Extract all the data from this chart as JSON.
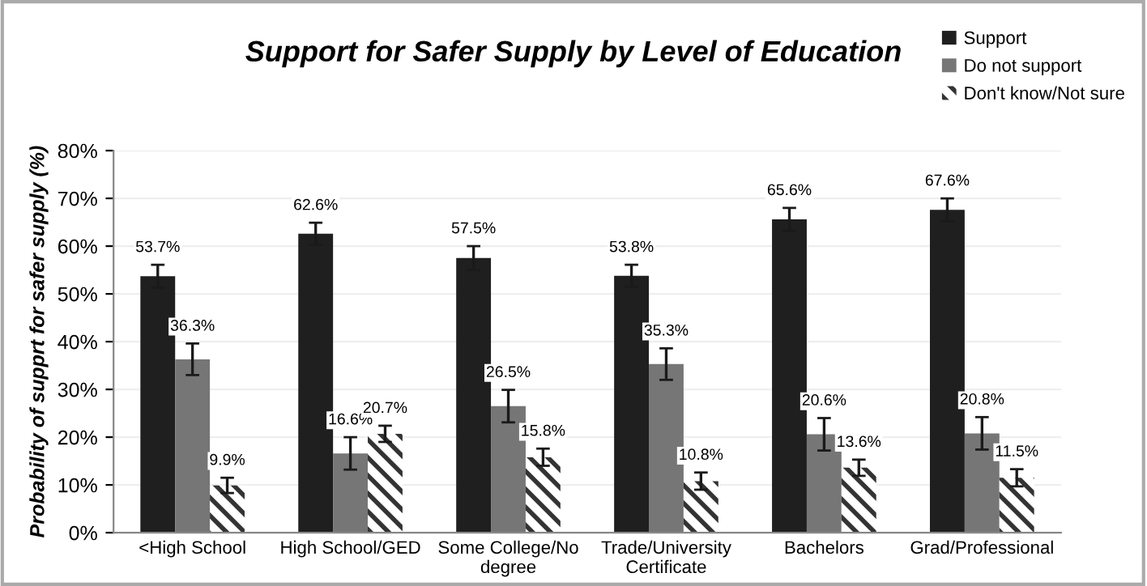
{
  "chart_data": {
    "type": "bar",
    "title": "Support for Safer Supply by Level of Education",
    "ylabel": "Probability of supprt for safer supply (%)",
    "categories": [
      "<High School",
      "High School/GED",
      "Some College/No\ndegree",
      "Trade/University\nCertificate",
      "Bachelors",
      "Grad/Professional"
    ],
    "series": [
      {
        "name": "Support",
        "color": "#1f1f1f",
        "values": [
          53.7,
          62.6,
          57.5,
          53.8,
          65.6,
          67.6
        ],
        "errors": [
          2.4,
          2.3,
          2.5,
          2.3,
          2.4,
          2.4
        ],
        "value_labels": [
          "53.7%",
          "62.6%",
          "57.5%",
          "53.8%",
          "65.6%",
          "67.6%"
        ]
      },
      {
        "name": "Do not support",
        "color": "#767676",
        "values": [
          36.3,
          16.6,
          26.5,
          35.3,
          20.6,
          20.8
        ],
        "errors": [
          3.3,
          3.4,
          3.4,
          3.3,
          3.4,
          3.4
        ],
        "value_labels": [
          "36.3%",
          "16.6%",
          "26.5%",
          "35.3%",
          "20.6%",
          "20.8%"
        ]
      },
      {
        "name": "Don't know/Not sure",
        "color": "#333333",
        "values": [
          9.9,
          20.7,
          15.8,
          10.8,
          13.6,
          11.5
        ],
        "errors": [
          1.6,
          1.7,
          1.8,
          1.8,
          1.7,
          1.8
        ],
        "value_labels": [
          "9.9%",
          "20.7%",
          "15.8%",
          "10.8%",
          "13.6%",
          "11.5%"
        ]
      }
    ],
    "ylim": [
      0,
      80
    ],
    "yticks": [
      {
        "value": 0,
        "label": "0%"
      },
      {
        "value": 10,
        "label": "10%"
      },
      {
        "value": 20,
        "label": "20%"
      },
      {
        "value": 30,
        "label": "30%"
      },
      {
        "value": 40,
        "label": "40%"
      },
      {
        "value": 50,
        "label": "50%"
      },
      {
        "value": 60,
        "label": "60%"
      },
      {
        "value": 70,
        "label": "70%"
      },
      {
        "value": 80,
        "label": "80%"
      }
    ],
    "grid": "y",
    "legend": "top right"
  }
}
